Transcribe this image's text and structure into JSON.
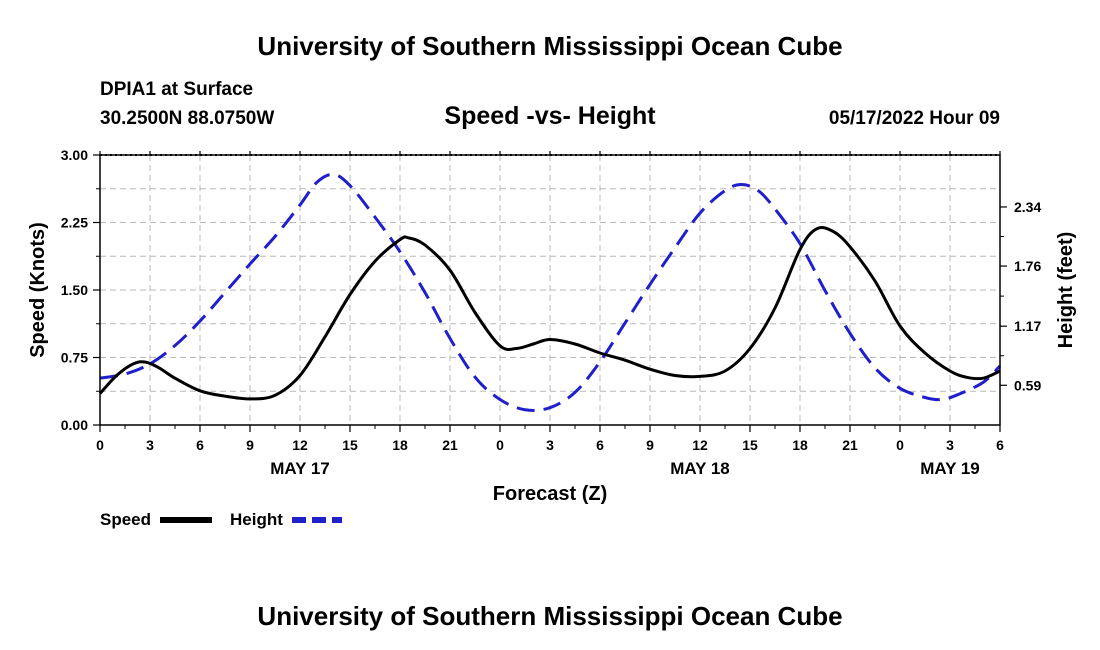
{
  "header": {
    "title": "University of Southern Mississippi Ocean Cube",
    "station": "DPIA1 at Surface",
    "coords": "30.2500N  88.0750W",
    "datetime": "05/17/2022 Hour 09",
    "footer_title": "University of Southern Mississippi Ocean Cube"
  },
  "chart_data": {
    "type": "line",
    "title": "Speed -vs- Height",
    "xlabel": "Forecast (Z)",
    "ylabel": "Speed (Knots)",
    "y2label": "Height (feet)",
    "xlim": [
      0,
      54
    ],
    "ylim": [
      0,
      3.0
    ],
    "y2lim": [
      0.2,
      2.85
    ],
    "grid": true,
    "x_ticks": [
      0,
      3,
      6,
      9,
      12,
      15,
      18,
      21,
      24,
      27,
      30,
      33,
      36,
      39,
      42,
      45,
      48,
      51,
      54
    ],
    "x_tick_labels": [
      "0",
      "3",
      "6",
      "9",
      "12",
      "15",
      "18",
      "21",
      "0",
      "3",
      "6",
      "9",
      "12",
      "15",
      "18",
      "21",
      "0",
      "3",
      "6"
    ],
    "y_ticks": [
      0,
      0.75,
      1.5,
      2.25,
      3.0
    ],
    "y_tick_labels": [
      "0.00",
      "0.75",
      "1.50",
      "2.25",
      "3.00"
    ],
    "y2_ticks": [
      0.59,
      1.17,
      1.76,
      2.34
    ],
    "y2_tick_labels": [
      "0.59",
      "1.17",
      "1.76",
      "2.34"
    ],
    "day_labels": [
      {
        "x": 12,
        "label": "MAY 17"
      },
      {
        "x": 36,
        "label": "MAY 18"
      },
      {
        "x": 51,
        "label": "MAY 19"
      }
    ],
    "series": [
      {
        "name": "Speed",
        "axis": "left",
        "color": "#000000",
        "style": "solid",
        "x": [
          0,
          1,
          2,
          2.7,
          3.5,
          4.5,
          6,
          7.5,
          9,
          10.5,
          12,
          13.5,
          15,
          16.5,
          18,
          18.5,
          19.5,
          21,
          22.5,
          24,
          25,
          26,
          27,
          28.5,
          30,
          31.5,
          33,
          34.5,
          36,
          37.5,
          39,
          40.5,
          42,
          43,
          44,
          45,
          46.5,
          48,
          49.5,
          51,
          52,
          53,
          54
        ],
        "y": [
          0.35,
          0.55,
          0.68,
          0.7,
          0.64,
          0.52,
          0.38,
          0.32,
          0.29,
          0.33,
          0.55,
          0.98,
          1.45,
          1.82,
          2.06,
          2.08,
          2.0,
          1.72,
          1.25,
          0.88,
          0.85,
          0.9,
          0.95,
          0.9,
          0.8,
          0.72,
          0.62,
          0.55,
          0.54,
          0.6,
          0.85,
          1.3,
          1.95,
          2.18,
          2.15,
          1.98,
          1.6,
          1.1,
          0.8,
          0.6,
          0.53,
          0.52,
          0.6
        ]
      },
      {
        "name": "Height",
        "axis": "right",
        "color": "#1f1fcc",
        "style": "dashed",
        "x": [
          0,
          1.5,
          3,
          4.5,
          6,
          7.5,
          9,
          10.5,
          12,
          13,
          14,
          15,
          16.5,
          18,
          19.5,
          21,
          22.5,
          24,
          25.5,
          27,
          28.5,
          30,
          31.5,
          33,
          34.5,
          36,
          37.5,
          38.5,
          39.5,
          40.5,
          42,
          43.5,
          45,
          46.5,
          48,
          49.5,
          50.5,
          51.5,
          53,
          54
        ],
        "y": [
          0.66,
          0.7,
          0.8,
          0.98,
          1.22,
          1.5,
          1.78,
          2.05,
          2.36,
          2.58,
          2.66,
          2.55,
          2.24,
          1.9,
          1.5,
          1.05,
          0.67,
          0.45,
          0.35,
          0.37,
          0.52,
          0.82,
          1.2,
          1.58,
          1.94,
          2.28,
          2.5,
          2.56,
          2.5,
          2.32,
          1.98,
          1.52,
          1.1,
          0.76,
          0.56,
          0.47,
          0.45,
          0.5,
          0.62,
          0.78
        ]
      }
    ]
  },
  "legend": {
    "items": [
      {
        "label": "Speed",
        "color": "#000000"
      },
      {
        "label": "Height",
        "color": "#1f1fcc"
      }
    ]
  }
}
